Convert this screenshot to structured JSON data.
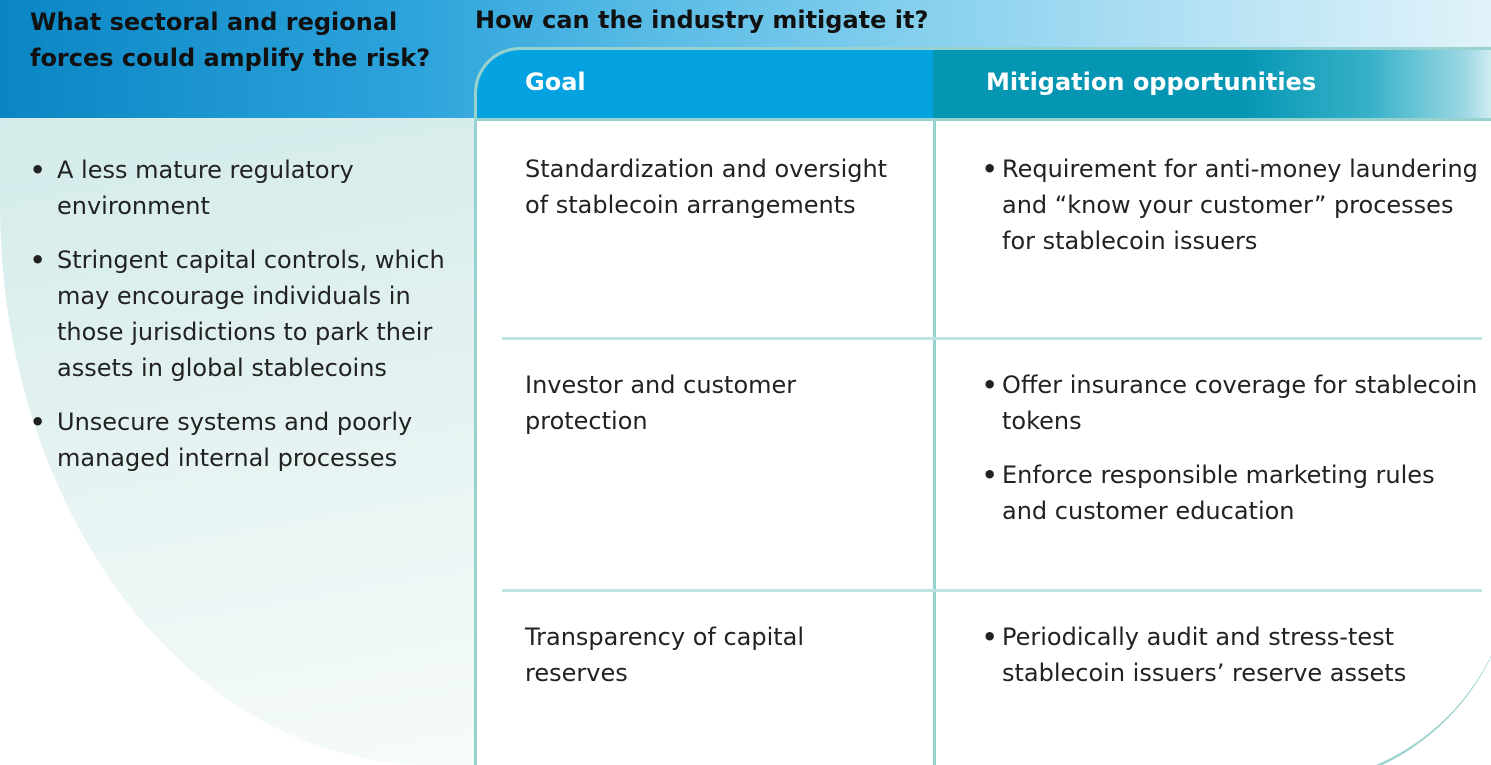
{
  "left": {
    "heading": "What sectoral and regional forces could amplify the risk?",
    "bullet_glyph": "•",
    "items": [
      "A less mature regulatory environment",
      "Stringent capital controls, which may encourage individuals in those jurisdictions to park their assets in global stablecoins",
      "Unsecure systems and poorly managed internal processes"
    ]
  },
  "right": {
    "heading": "How can the industry mitigate it?",
    "table": {
      "goal_header": "Goal",
      "mitigation_header": "Mitigation opportunities",
      "rows": [
        {
          "goal": "Standardization and oversight of stablecoin arrangements",
          "mitigations": [
            "Requirement for anti-money laundering and “know your customer” processes for stablecoin issuers"
          ]
        },
        {
          "goal": "Investor and customer protection",
          "mitigations": [
            "Offer insurance coverage for stablecoin tokens",
            "Enforce responsible marketing rules and customer education"
          ]
        },
        {
          "goal": "Transparency of capital reserves",
          "mitigations": [
            "Periodically audit and stress-test stablecoin issuers’ reserve assets"
          ]
        }
      ]
    }
  },
  "colors": {
    "header_blue": "#04a2e0",
    "header_teal": "#0596b3",
    "frame_teal": "#98d2cf",
    "left_panel": "#d3ebea"
  }
}
